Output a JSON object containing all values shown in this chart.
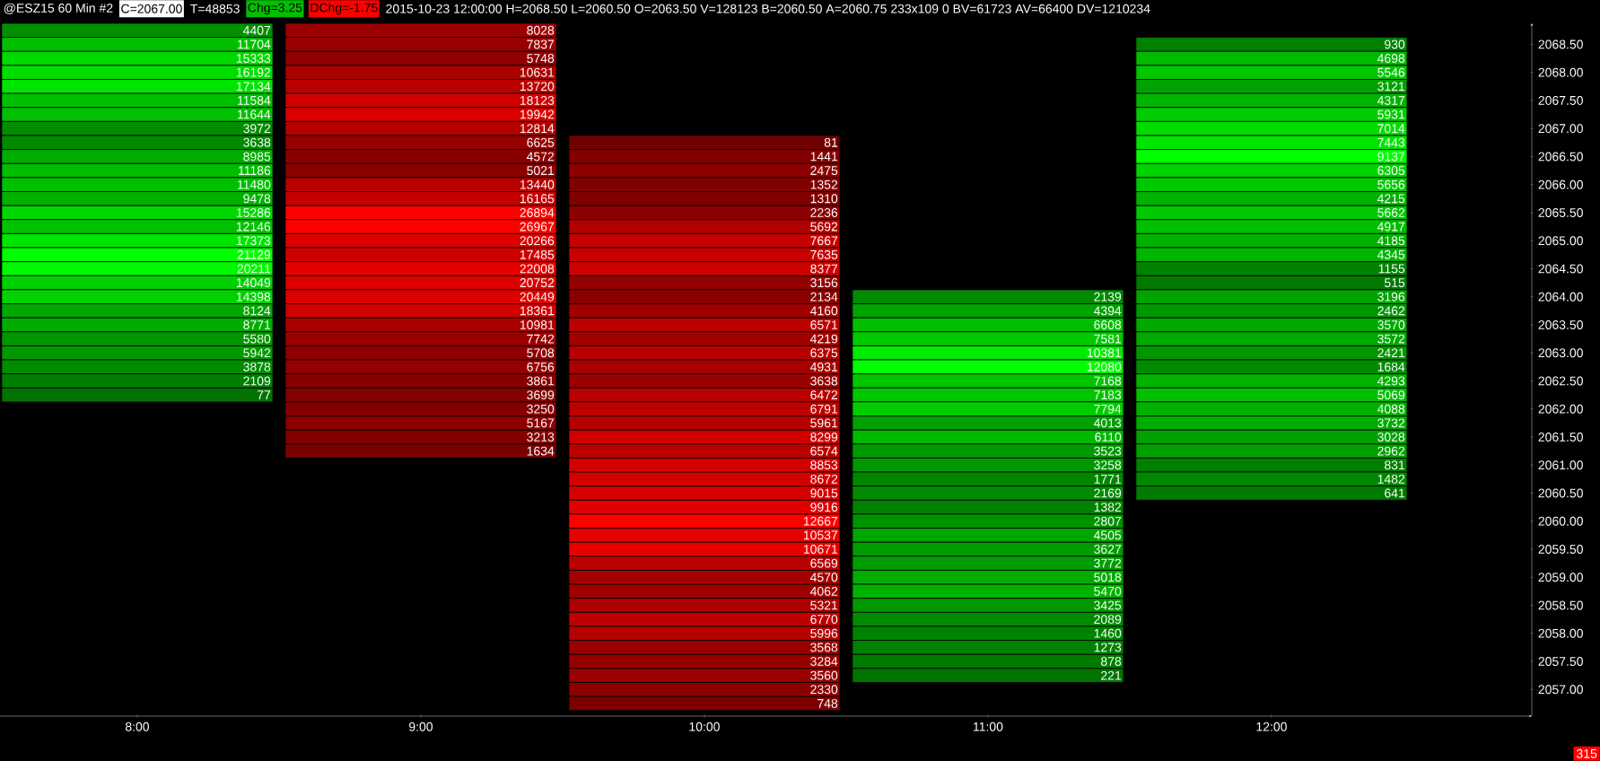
{
  "chart_data": {
    "type": "heatmap",
    "title": "@ESZ15  60 Min  #2",
    "annotations": [
      "C=2067.00",
      "T=48853",
      "Chg=3.25",
      "DChg=-1.75",
      "2015-10-23 12:00:00 H=2068.50 L=2060.50 O=2063.50 V=128123 B=2060.50 A=2060.75 233x109 0 BV=61723 AV=66400 DV=1210234",
      "315"
    ],
    "colors": [
      "#00ff00",
      "#ff0000",
      "#ff0000",
      "#00ff00",
      "#00ff00"
    ],
    "categories": [
      "8:00",
      "9:00",
      "10:00",
      "11:00",
      "12:00"
    ],
    "y_categories": [
      null,
      "2068.50",
      null,
      "2068.00",
      null,
      "2067.50",
      null,
      "2067.00",
      null,
      "2066.50",
      null,
      "2066.00",
      null,
      "2065.50",
      null,
      "2065.00",
      null,
      "2064.50",
      null,
      "2064.00",
      null,
      "2063.50",
      null,
      "2063.00",
      null,
      "2062.50",
      null,
      "2062.00",
      null,
      "2061.50",
      null,
      "2061.00",
      null,
      "2060.50",
      null,
      "2060.00",
      null,
      "2059.50",
      null,
      "2059.00",
      null,
      "2058.50",
      null,
      "2058.00",
      null,
      "2057.50",
      null,
      "2057.00",
      null
    ],
    "cell_labels": [
      [
        "4407",
        "8028",
        null,
        null,
        null
      ],
      [
        "11704",
        "7837",
        null,
        null,
        "930"
      ],
      [
        "15333",
        "5748",
        null,
        null,
        "4698"
      ],
      [
        "16192",
        "10631",
        null,
        null,
        "5546"
      ],
      [
        "17134",
        "13720",
        null,
        null,
        "3121"
      ],
      [
        "11584",
        "18123",
        null,
        null,
        "4317"
      ],
      [
        "11644",
        "19942",
        null,
        null,
        "5931"
      ],
      [
        "3972",
        "12814",
        null,
        null,
        "7014"
      ],
      [
        "3638",
        "6625",
        "81",
        null,
        "7443"
      ],
      [
        "8985",
        "4572",
        "1441",
        null,
        "9137"
      ],
      [
        "11186",
        "5021",
        "2475",
        null,
        "6305"
      ],
      [
        "11480",
        "13440",
        "1352",
        null,
        "5656"
      ],
      [
        "9478",
        "16165",
        "1310",
        null,
        "4215"
      ],
      [
        "15286",
        "26894",
        "2236",
        null,
        "5662"
      ],
      [
        "12146",
        "26967",
        "5692",
        null,
        "4917"
      ],
      [
        "17373",
        "20266",
        "7667",
        null,
        "4185"
      ],
      [
        "21129",
        "17485",
        "7635",
        null,
        "4345"
      ],
      [
        "20211",
        "22008",
        "8377",
        null,
        "1155"
      ],
      [
        "14049",
        "20752",
        "3156",
        null,
        "515"
      ],
      [
        "14398",
        "20449",
        "2134",
        "2139",
        "3196"
      ],
      [
        "8124",
        "18361",
        "4160",
        "4394",
        "2462"
      ],
      [
        "8771",
        "10981",
        "6571",
        "6608",
        "3570"
      ],
      [
        "5580",
        "7742",
        "4219",
        "7581",
        "3572"
      ],
      [
        "5942",
        "5708",
        "6375",
        "10381",
        "2421"
      ],
      [
        "3878",
        "6756",
        "4931",
        "12080",
        "1684"
      ],
      [
        "2109",
        "3861",
        "3638",
        "7168",
        "4293"
      ],
      [
        "77",
        "3699",
        "6472",
        "7183",
        "5069"
      ],
      [
        null,
        "3250",
        "6791",
        "7794",
        "4088"
      ],
      [
        null,
        "5167",
        "5961",
        "4013",
        "3732"
      ],
      [
        null,
        "3213",
        "8299",
        "6110",
        "3028"
      ],
      [
        null,
        "1634",
        "6574",
        "3523",
        "2962"
      ],
      [
        null,
        null,
        "8853",
        "3258",
        "831"
      ],
      [
        null,
        null,
        "8672",
        "1771",
        "1482"
      ],
      [
        null,
        null,
        "9015",
        "2169",
        "641"
      ],
      [
        null,
        null,
        "9916",
        "1382",
        null
      ],
      [
        null,
        null,
        "12667",
        "2807",
        null
      ],
      [
        null,
        null,
        "10537",
        "4505",
        null
      ],
      [
        null,
        null,
        "10671",
        "3627",
        null
      ],
      [
        null,
        null,
        "6569",
        "3772",
        null
      ],
      [
        null,
        null,
        "4570",
        "5018",
        null
      ],
      [
        null,
        null,
        "4062",
        "5470",
        null
      ],
      [
        null,
        null,
        "5321",
        "3425",
        null
      ],
      [
        null,
        null,
        "6770",
        "2089",
        null
      ],
      [
        null,
        null,
        "5996",
        "1460",
        null
      ],
      [
        null,
        null,
        "3568",
        "1273",
        null
      ],
      [
        null,
        null,
        "3284",
        "878",
        null
      ],
      [
        null,
        null,
        "3560",
        "221",
        null
      ],
      [
        null,
        null,
        "2330",
        null,
        null
      ],
      [
        null,
        null,
        "748",
        null,
        null
      ]
    ],
    "cells": [
      [
        4407,
        8028,
        null,
        null,
        null
      ],
      [
        11704,
        7837,
        null,
        null,
        930
      ],
      [
        15333,
        5748,
        null,
        null,
        4698
      ],
      [
        16192,
        10631,
        null,
        null,
        5546
      ],
      [
        17134,
        13720,
        null,
        null,
        3121
      ],
      [
        11584,
        18123,
        null,
        null,
        4317
      ],
      [
        11644,
        19942,
        null,
        null,
        5931
      ],
      [
        3972,
        12814,
        null,
        null,
        7014
      ],
      [
        3638,
        6625,
        81,
        null,
        7443
      ],
      [
        8985,
        4572,
        1441,
        null,
        9137
      ],
      [
        11186,
        5021,
        2475,
        null,
        6305
      ],
      [
        11480,
        13440,
        1352,
        null,
        5656
      ],
      [
        9478,
        16165,
        1310,
        null,
        4215
      ],
      [
        15286,
        26894,
        2236,
        null,
        5662
      ],
      [
        12146,
        26967,
        5692,
        null,
        4917
      ],
      [
        17373,
        20266,
        7667,
        null,
        4185
      ],
      [
        21129,
        17485,
        7635,
        null,
        4345
      ],
      [
        20211,
        22008,
        8377,
        null,
        1155
      ],
      [
        14049,
        20752,
        3156,
        null,
        515
      ],
      [
        14398,
        20449,
        2134,
        2139,
        3196
      ],
      [
        8124,
        18361,
        4160,
        4394,
        2462
      ],
      [
        8771,
        10981,
        6571,
        6608,
        3570
      ],
      [
        5580,
        7742,
        4219,
        7581,
        3572
      ],
      [
        5942,
        5708,
        6375,
        10381,
        2421
      ],
      [
        3878,
        6756,
        4931,
        12080,
        1684
      ],
      [
        2109,
        3861,
        3638,
        7168,
        4293
      ],
      [
        77,
        3699,
        6472,
        7183,
        5069
      ],
      [
        null,
        3250,
        6791,
        7794,
        4088
      ],
      [
        null,
        5167,
        5961,
        4013,
        3732
      ],
      [
        null,
        3213,
        8299,
        6110,
        3028
      ],
      [
        null,
        1634,
        6574,
        3523,
        2962
      ],
      [
        null,
        null,
        8853,
        3258,
        831
      ],
      [
        null,
        null,
        8672,
        1771,
        1482
      ],
      [
        null,
        null,
        9015,
        2169,
        641
      ],
      [
        null,
        null,
        9916,
        1382,
        null
      ],
      [
        null,
        null,
        12667,
        2807,
        null
      ],
      [
        null,
        null,
        10537,
        4505,
        null
      ],
      [
        null,
        null,
        10671,
        3627,
        null
      ],
      [
        null,
        null,
        6569,
        3772,
        null
      ],
      [
        null,
        null,
        4570,
        5018,
        null
      ],
      [
        null,
        null,
        4062,
        5470,
        null
      ],
      [
        null,
        null,
        5321,
        3425,
        null
      ],
      [
        null,
        null,
        6770,
        2089,
        null
      ],
      [
        null,
        null,
        5996,
        1460,
        null
      ],
      [
        null,
        null,
        3568,
        1273,
        null
      ],
      [
        null,
        null,
        3284,
        878,
        null
      ],
      [
        null,
        null,
        3560,
        221,
        null
      ],
      [
        null,
        null,
        2330,
        null,
        null
      ],
      [
        null,
        null,
        748,
        null,
        null
      ]
    ]
  }
}
